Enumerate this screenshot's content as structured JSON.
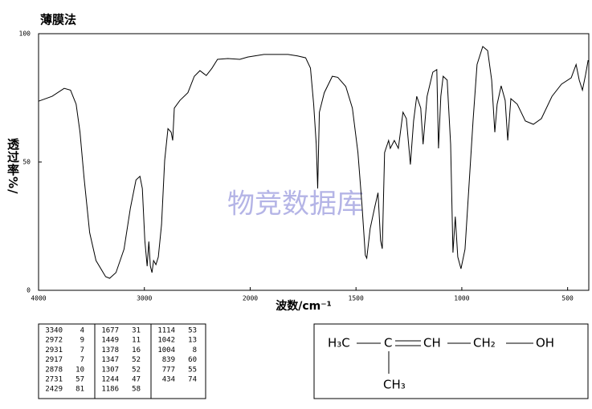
{
  "chart_data": {
    "type": "line",
    "title": "薄膜法",
    "xlabel": "波数/cm⁻¹",
    "ylabel": "透过率%/",
    "watermark": "物竞数据库",
    "color": "#000000",
    "xlim": [
      4000,
      400
    ],
    "xticks": [
      4000,
      3000,
      2000,
      1500,
      1000,
      500
    ],
    "ylim": [
      0,
      100
    ],
    "yticks": [
      0,
      50,
      100
    ],
    "x": [
      4000,
      3872,
      3758,
      3698,
      3645,
      3608,
      3570,
      3517,
      3457,
      3366,
      3328,
      3268,
      3192,
      3132,
      3079,
      3042,
      3019,
      2996,
      2974,
      2958,
      2943,
      2928,
      2913,
      2891,
      2868,
      2838,
      2808,
      2777,
      2747,
      2732,
      2717,
      2664,
      2589,
      2528,
      2475,
      2415,
      2362,
      2309,
      2211,
      2098,
      2023,
      1935,
      1821,
      1776,
      1738,
      1715,
      1700,
      1688,
      1681,
      1673,
      1650,
      1612,
      1586,
      1548,
      1517,
      1491,
      1472,
      1456,
      1449,
      1433,
      1411,
      1396,
      1384,
      1376,
      1365,
      1346,
      1338,
      1319,
      1300,
      1278,
      1262,
      1243,
      1228,
      1213,
      1194,
      1183,
      1164,
      1137,
      1118,
      1110,
      1099,
      1088,
      1069,
      1053,
      1042,
      1031,
      1019,
      1004,
      985,
      966,
      947,
      928,
      901,
      878,
      859,
      844,
      833,
      814,
      795,
      783,
      768,
      738,
      700,
      662,
      624,
      574,
      529,
      483,
      460,
      445,
      430,
      415,
      403
    ],
    "values": [
      73.7,
      75.6,
      78.7,
      78,
      72.5,
      61.6,
      44,
      22.5,
      11.6,
      5.3,
      4.7,
      6.9,
      16,
      32,
      43,
      44.4,
      39.7,
      19.4,
      9.4,
      19,
      9.4,
      6.9,
      11.6,
      10,
      13,
      25.6,
      50.6,
      63,
      61.6,
      58.4,
      71,
      74,
      77,
      83.4,
      85.6,
      83.7,
      86.5,
      90,
      90.3,
      90,
      90.9,
      91.9,
      91.9,
      91.3,
      90.6,
      86.6,
      72.5,
      56.9,
      39.7,
      69.4,
      77,
      83.4,
      83,
      79.4,
      71,
      53.7,
      33.4,
      13.7,
      12.5,
      24,
      32.5,
      38,
      19.4,
      16.2,
      53.7,
      58.4,
      55.3,
      58.4,
      55.3,
      69.4,
      66.9,
      49,
      66,
      75.6,
      71,
      56.9,
      75.6,
      85,
      86,
      55.3,
      75.6,
      83.4,
      81.9,
      56.9,
      14.7,
      28.7,
      13,
      8.4,
      16,
      41,
      66,
      88,
      95,
      93.4,
      81.9,
      61.6,
      72.5,
      79.7,
      74,
      58.4,
      74.7,
      72.5,
      66,
      64.7,
      66.9,
      75.6,
      80.3,
      82.8,
      88,
      81.9,
      78,
      84,
      89.7
    ]
  },
  "peak_table": {
    "rows": [
      [
        3340,
        4
      ],
      [
        2972,
        9
      ],
      [
        2931,
        7
      ],
      [
        2917,
        7
      ],
      [
        2878,
        10
      ],
      [
        2731,
        57
      ],
      [
        2429,
        81
      ],
      [
        1677,
        31
      ],
      [
        1449,
        11
      ],
      [
        1378,
        16
      ],
      [
        1347,
        52
      ],
      [
        1307,
        52
      ],
      [
        1244,
        47
      ],
      [
        1186,
        58
      ],
      [
        1114,
        53
      ],
      [
        1042,
        13
      ],
      [
        1004,
        8
      ],
      [
        839,
        60
      ],
      [
        777,
        55
      ],
      [
        434,
        74
      ]
    ]
  },
  "structure": {
    "h3c": "H₃C",
    "c": "C",
    "ch": "CH",
    "ch2": "CH₂",
    "oh": "OH",
    "ch3": "CH₃"
  }
}
